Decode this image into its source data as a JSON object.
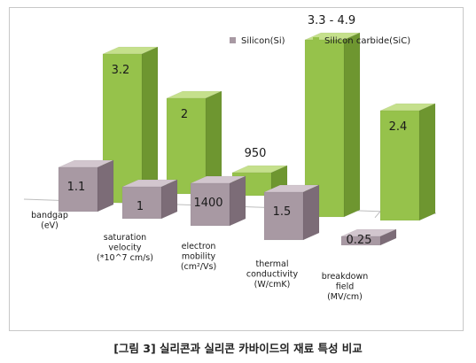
{
  "caption": "[그림 3] 실리콘과 실리콘 카바이드의 재료 특성 비교",
  "legend_position": "top-right",
  "colors": {
    "silicon": {
      "front": "#a899a3",
      "top": "#d2c6ce",
      "side": "#7c6c77"
    },
    "sic": {
      "front": "#96c24b",
      "top": "#c5e08c",
      "side": "#6e9630"
    },
    "axis": "#bdbdbd",
    "frame": "#c8c8c8"
  },
  "chart_data": {
    "type": "bar",
    "style": "3d-clustered-column",
    "grid": false,
    "categories": [
      [
        "bandgap",
        "(eV)"
      ],
      [
        "saturation",
        "velocity",
        "(*10^7 cm/s)"
      ],
      [
        "electron",
        "mobility",
        "(cm²/Vs)"
      ],
      [
        "thermal",
        "conductivity",
        "(W/cmK)"
      ],
      [
        "breakdown",
        "field",
        "(MV/cm)"
      ]
    ],
    "series": [
      {
        "name": "Silicon(Si)",
        "values": [
          1.1,
          1,
          1400,
          1.5,
          0.25
        ],
        "labels": [
          "1.1",
          "1",
          "1400",
          "1.5",
          "0.25"
        ],
        "relative_height": [
          0.2,
          0.2,
          0.28,
          0.4,
          0.05
        ]
      },
      {
        "name": "Silicon carbide(SiC)",
        "values": [
          3.2,
          2,
          950,
          4.9,
          2.4
        ],
        "labels": [
          "3.2",
          "2",
          "950",
          "3.3 - 4.9",
          "2.4"
        ],
        "relative_height": [
          0.84,
          0.54,
          0.13,
          1.0,
          0.62
        ]
      }
    ]
  }
}
